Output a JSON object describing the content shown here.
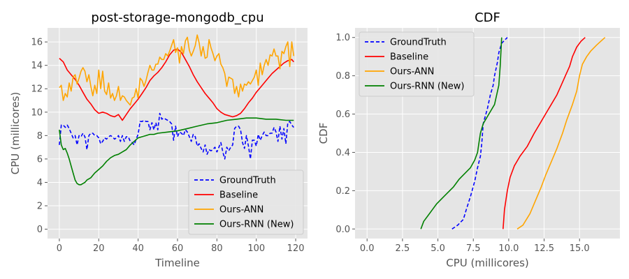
{
  "chart_data": [
    {
      "type": "line",
      "title": "post-storage-mongodb_cpu",
      "xlabel": "Timeline",
      "ylabel": "CPU (millicores)",
      "xlim": [
        -6,
        126
      ],
      "ylim": [
        -0.8,
        17.2
      ],
      "xticks": [
        0,
        20,
        40,
        60,
        80,
        100,
        120
      ],
      "yticks": [
        0,
        2,
        4,
        6,
        8,
        10,
        12,
        14,
        16
      ],
      "grid": true,
      "legend_position": "bottom-right",
      "series": [
        {
          "name": "GroundTruth",
          "color": "#0000ff",
          "dash": "dashed",
          "x": [
            0,
            1,
            2,
            3,
            4,
            5,
            6,
            7,
            8,
            9,
            10,
            11,
            12,
            13,
            14,
            15,
            16,
            17,
            18,
            19,
            20,
            21,
            22,
            23,
            24,
            25,
            26,
            27,
            28,
            29,
            30,
            31,
            32,
            33,
            34,
            35,
            36,
            37,
            38,
            39,
            40,
            41,
            42,
            43,
            44,
            45,
            46,
            47,
            48,
            49,
            50,
            51,
            52,
            53,
            54,
            55,
            56,
            57,
            58,
            59,
            60,
            61,
            62,
            63,
            64,
            65,
            66,
            67,
            68,
            69,
            70,
            71,
            72,
            73,
            74,
            75,
            76,
            77,
            78,
            79,
            80,
            81,
            82,
            83,
            84,
            85,
            86,
            87,
            88,
            89,
            90,
            91,
            92,
            93,
            94,
            95,
            96,
            97,
            98,
            99,
            100,
            101,
            102,
            103,
            104,
            105,
            106,
            107,
            108,
            109,
            110,
            111,
            112,
            113,
            114,
            115,
            116,
            117,
            118,
            119
          ],
          "y": [
            7.2,
            8.9,
            8.9,
            8.7,
            8.9,
            8.6,
            8.2,
            7.8,
            8.0,
            7.2,
            8.0,
            7.9,
            8.2,
            7.9,
            6.8,
            8.0,
            8.2,
            8.2,
            8.0,
            8.0,
            7.8,
            7.3,
            7.5,
            7.8,
            7.7,
            7.9,
            8.0,
            7.9,
            7.7,
            7.8,
            8.0,
            7.5,
            8.0,
            7.5,
            7.9,
            7.9,
            7.5,
            7.4,
            7.2,
            7.7,
            8.1,
            9.2,
            9.2,
            9.3,
            9.2,
            9.2,
            8.5,
            9.1,
            8.5,
            9.1,
            8.5,
            9.9,
            9.4,
            9.5,
            9.4,
            9.3,
            9.2,
            9.0,
            7.6,
            8.8,
            7.9,
            8.3,
            8.2,
            8.0,
            8.5,
            8.3,
            7.9,
            7.5,
            8.1,
            7.9,
            7.1,
            7.3,
            6.9,
            6.6,
            7.2,
            6.4,
            6.8,
            6.7,
            6.8,
            7.0,
            6.6,
            7.0,
            7.4,
            6.6,
            6.0,
            7.0,
            6.7,
            7.0,
            7.2,
            8.6,
            8.8,
            8.8,
            8.5,
            7.4,
            6.9,
            8.0,
            7.1,
            6.0,
            7.6,
            7.6,
            7.1,
            8.1,
            7.6,
            8.0,
            8.3,
            8.0,
            8.0,
            8.2,
            8.2,
            8.7,
            8.3,
            7.5,
            8.8,
            7.7,
            8.6,
            7.3,
            9.1,
            9.2,
            8.9,
            8.7
          ]
        },
        {
          "name": "Baseline",
          "color": "#ff0000",
          "dash": "solid",
          "x": [
            0,
            2,
            4,
            6,
            8,
            10,
            12,
            14,
            16,
            18,
            20,
            22,
            24,
            26,
            28,
            30,
            32,
            34,
            36,
            38,
            40,
            42,
            44,
            46,
            48,
            50,
            52,
            54,
            56,
            58,
            60,
            62,
            64,
            66,
            68,
            70,
            72,
            74,
            76,
            78,
            80,
            82,
            84,
            86,
            88,
            90,
            92,
            94,
            96,
            98,
            100,
            102,
            104,
            106,
            108,
            110,
            112,
            114,
            116,
            118,
            119
          ],
          "y": [
            14.6,
            14.3,
            13.6,
            13.2,
            12.8,
            12.3,
            11.7,
            11.1,
            10.7,
            10.2,
            9.9,
            10.0,
            9.9,
            9.7,
            9.6,
            9.8,
            9.3,
            9.8,
            10.3,
            10.7,
            11.1,
            11.6,
            12.1,
            12.7,
            13.1,
            13.4,
            13.8,
            14.3,
            14.9,
            15.3,
            15.4,
            15.1,
            14.5,
            13.9,
            13.2,
            12.6,
            12.1,
            11.6,
            11.2,
            10.8,
            10.3,
            10.0,
            9.8,
            9.7,
            9.6,
            9.7,
            9.9,
            10.3,
            10.8,
            11.2,
            11.7,
            12.1,
            12.5,
            12.9,
            13.3,
            13.6,
            13.9,
            14.2,
            14.4,
            14.5,
            14.3
          ]
        },
        {
          "name": "Ours-ANN",
          "color": "#ffa500",
          "dash": "solid",
          "x": [
            0,
            1,
            2,
            3,
            4,
            5,
            6,
            7,
            8,
            9,
            10,
            11,
            12,
            13,
            14,
            15,
            16,
            17,
            18,
            19,
            20,
            21,
            22,
            23,
            24,
            25,
            26,
            27,
            28,
            29,
            30,
            31,
            32,
            33,
            34,
            35,
            36,
            37,
            38,
            39,
            40,
            41,
            42,
            43,
            44,
            45,
            46,
            47,
            48,
            49,
            50,
            51,
            52,
            53,
            54,
            55,
            56,
            57,
            58,
            59,
            60,
            61,
            62,
            63,
            64,
            65,
            66,
            67,
            68,
            69,
            70,
            71,
            72,
            73,
            74,
            75,
            76,
            77,
            78,
            79,
            80,
            81,
            82,
            83,
            84,
            85,
            86,
            87,
            88,
            89,
            90,
            91,
            92,
            93,
            94,
            95,
            96,
            97,
            98,
            99,
            100,
            101,
            102,
            103,
            104,
            105,
            106,
            107,
            108,
            109,
            110,
            111,
            112,
            113,
            114,
            115,
            116,
            117,
            118,
            119
          ],
          "y": [
            12.1,
            12.3,
            11.0,
            11.6,
            11.3,
            12.5,
            11.8,
            13.0,
            13.2,
            12.4,
            12.9,
            13.5,
            13.8,
            13.5,
            12.6,
            13.2,
            12.2,
            11.4,
            12.3,
            11.6,
            13.6,
            12.0,
            13.5,
            11.8,
            11.5,
            12.5,
            11.2,
            11.6,
            11.0,
            11.4,
            12.2,
            11.0,
            11.4,
            11.3,
            11.0,
            10.8,
            10.6,
            11.2,
            11.3,
            12.0,
            11.2,
            12.9,
            12.7,
            12.2,
            12.7,
            13.4,
            14.0,
            13.6,
            13.6,
            14.1,
            14.1,
            14.7,
            14.5,
            14.5,
            15.0,
            14.8,
            15.2,
            15.7,
            16.2,
            15.1,
            15.5,
            14.2,
            15.6,
            15.0,
            16.1,
            16.4,
            15.3,
            14.8,
            15.2,
            15.7,
            16.6,
            15.9,
            14.8,
            15.6,
            14.6,
            14.7,
            16.2,
            15.5,
            15.0,
            14.4,
            14.8,
            15.0,
            14.1,
            13.8,
            13.3,
            12.2,
            13.0,
            12.9,
            12.8,
            11.6,
            12.2,
            11.3,
            12.4,
            11.8,
            12.4,
            12.3,
            12.6,
            12.4,
            12.7,
            13.0,
            13.6,
            12.3,
            14.2,
            13.2,
            14.0,
            14.5,
            14.0,
            14.9,
            14.8,
            15.4,
            14.8,
            14.8,
            13.7,
            15.2,
            15.0,
            15.6,
            16.0,
            13.9,
            16.0,
            14.8
          ]
        },
        {
          "name": "Ours-RNN (New)",
          "color": "#008000",
          "dash": "solid",
          "x": [
            0,
            1,
            2,
            3,
            4,
            5,
            6,
            7,
            8,
            9,
            10,
            11,
            12,
            13,
            14,
            15,
            16,
            17,
            18,
            20,
            22,
            24,
            26,
            28,
            30,
            32,
            34,
            36,
            38,
            40,
            42,
            44,
            46,
            48,
            50,
            55,
            60,
            65,
            70,
            75,
            80,
            85,
            90,
            95,
            100,
            105,
            110,
            115,
            119
          ],
          "y": [
            8.5,
            7.2,
            6.8,
            6.9,
            6.5,
            6.0,
            5.4,
            4.8,
            4.2,
            3.9,
            3.8,
            3.8,
            3.9,
            4.0,
            4.2,
            4.3,
            4.4,
            4.6,
            4.8,
            5.1,
            5.4,
            5.8,
            6.1,
            6.3,
            6.4,
            6.6,
            6.8,
            7.2,
            7.5,
            7.8,
            7.9,
            8.0,
            8.1,
            8.1,
            8.2,
            8.3,
            8.4,
            8.6,
            8.8,
            9.0,
            9.1,
            9.3,
            9.4,
            9.5,
            9.5,
            9.4,
            9.4,
            9.3,
            9.3
          ]
        }
      ]
    },
    {
      "type": "line",
      "title": "CDF",
      "xlabel": "CPU (millicores)",
      "ylabel": "CDF",
      "xlim": [
        -0.85,
        17.85
      ],
      "ylim": [
        -0.05,
        1.05
      ],
      "xticks": [
        0.0,
        2.5,
        5.0,
        7.5,
        10.0,
        12.5,
        15.0
      ],
      "xtick_labels": [
        "0.0",
        "2.5",
        "5.0",
        "7.5",
        "10.0",
        "12.5",
        "15.0"
      ],
      "yticks": [
        0.0,
        0.2,
        0.4,
        0.6,
        0.8,
        1.0
      ],
      "ytick_labels": [
        "0.0",
        "0.2",
        "0.4",
        "0.6",
        "0.8",
        "1.0"
      ],
      "grid": true,
      "legend_position": "top-left",
      "series": [
        {
          "name": "GroundTruth",
          "color": "#0000ff",
          "dash": "dashed",
          "x": [
            6.0,
            6.4,
            6.8,
            7.0,
            7.3,
            7.6,
            7.8,
            8.0,
            8.1,
            8.2,
            8.5,
            8.7,
            8.9,
            9.0,
            9.2,
            9.3,
            9.5,
            9.9
          ],
          "y": [
            0.0,
            0.02,
            0.05,
            0.1,
            0.17,
            0.25,
            0.32,
            0.38,
            0.45,
            0.55,
            0.63,
            0.7,
            0.75,
            0.8,
            0.87,
            0.92,
            0.97,
            1.0
          ]
        },
        {
          "name": "Baseline",
          "color": "#ff0000",
          "dash": "solid",
          "x": [
            9.6,
            9.7,
            9.9,
            10.1,
            10.4,
            10.8,
            11.3,
            11.8,
            12.2,
            12.6,
            13.0,
            13.4,
            13.7,
            14.0,
            14.3,
            14.5,
            14.8,
            15.1,
            15.4
          ],
          "y": [
            0.0,
            0.1,
            0.2,
            0.27,
            0.33,
            0.38,
            0.43,
            0.5,
            0.55,
            0.6,
            0.65,
            0.7,
            0.75,
            0.8,
            0.85,
            0.9,
            0.95,
            0.98,
            1.0
          ]
        },
        {
          "name": "Ours-ANN",
          "color": "#ffa500",
          "dash": "solid",
          "x": [
            10.6,
            11.0,
            11.5,
            11.9,
            12.3,
            12.6,
            13.0,
            13.4,
            13.8,
            14.1,
            14.5,
            14.8,
            15.0,
            15.2,
            15.5,
            15.8,
            16.2,
            16.5,
            16.8
          ],
          "y": [
            0.0,
            0.02,
            0.08,
            0.15,
            0.22,
            0.28,
            0.35,
            0.42,
            0.5,
            0.57,
            0.65,
            0.72,
            0.8,
            0.86,
            0.9,
            0.93,
            0.96,
            0.98,
            1.0
          ]
        },
        {
          "name": "Ours-RNN (New)",
          "color": "#008000",
          "dash": "solid",
          "x": [
            3.8,
            4.0,
            4.3,
            4.6,
            4.9,
            5.3,
            5.7,
            6.1,
            6.5,
            6.9,
            7.3,
            7.6,
            7.8,
            7.9,
            8.0,
            8.2,
            8.6,
            9.0,
            9.3,
            9.4,
            9.5
          ],
          "y": [
            0.0,
            0.04,
            0.07,
            0.1,
            0.13,
            0.16,
            0.19,
            0.22,
            0.26,
            0.29,
            0.32,
            0.36,
            0.4,
            0.45,
            0.5,
            0.55,
            0.6,
            0.65,
            0.75,
            0.85,
            1.0
          ]
        }
      ]
    }
  ]
}
